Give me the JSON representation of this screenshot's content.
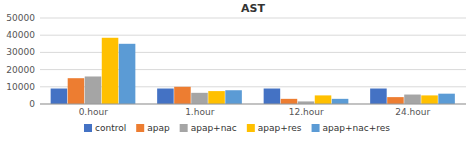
{
  "chart_data": {
    "type": "bar",
    "title": "AST",
    "categories": [
      "0.hour",
      "1.hour",
      "12.hour",
      "24.hour"
    ],
    "series": [
      {
        "name": "control",
        "color": "#4472C4",
        "values": [
          9000,
          9000,
          9000,
          9000
        ]
      },
      {
        "name": "apap",
        "color": "#ED7D31",
        "values": [
          15000,
          10000,
          3000,
          4000
        ]
      },
      {
        "name": "apap+nac",
        "color": "#A5A5A5",
        "values": [
          16000,
          6500,
          1500,
          5500
        ]
      },
      {
        "name": "apap+res",
        "color": "#FFC000",
        "values": [
          38500,
          7500,
          5000,
          5000
        ]
      },
      {
        "name": "apap+nac+res",
        "color": "#5B9BD5",
        "values": [
          35000,
          8000,
          3000,
          6000
        ]
      }
    ],
    "ylim": [
      0,
      50000
    ],
    "yticks": [
      0,
      10000,
      20000,
      30000,
      40000,
      50000
    ],
    "grid": true,
    "legend": "bottom"
  }
}
